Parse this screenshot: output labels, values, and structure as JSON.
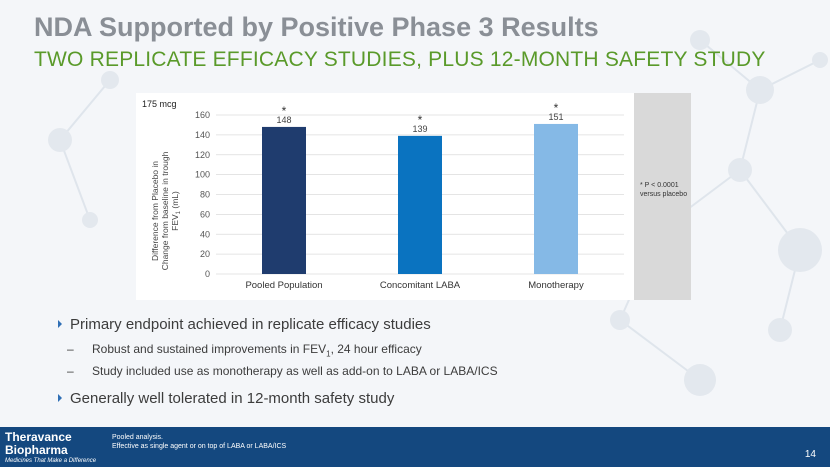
{
  "slide": {
    "title": "NDA Supported by Positive Phase 3 Results",
    "subtitle": "TWO REPLICATE EFFICACY STUDIES, PLUS 12-MONTH SAFETY STUDY",
    "page_number": "14"
  },
  "note": {
    "line1": "* P < 0.0001",
    "line2": "versus placebo"
  },
  "bullets": {
    "b1": "Primary endpoint achieved in replicate efficacy studies",
    "b1_sub1": "Robust and sustained improvements in FEV",
    "b1_sub1_subscript": "1",
    "b1_sub1_rest": ", 24 hour efficacy",
    "b1_sub2": "Study included use as monotherapy as well as add-on to LABA or LABA/ICS",
    "b2": "Generally well tolerated in 12-month safety study"
  },
  "footer": {
    "logo_line1": "Theravance",
    "logo_line2": "Biopharma",
    "tagline": "Medicines That Make a Difference",
    "footnote1": "Pooled analysis.",
    "footnote2": "Effective as single agent or on top of LABA or LABA/ICS"
  },
  "colors": {
    "footer_bg": "#14487f",
    "subtitle_green": "#5a9a2a"
  },
  "chart_data": {
    "type": "bar",
    "title": "175 mcg",
    "ylabel": "Difference from Placebo in Change from baseline in trough FEV1 (mL)",
    "ylabel_line1": "Difference from Placebo in",
    "ylabel_line2": "Change from baseline in trough",
    "ylabel_line3": "FEV",
    "ylabel_line3_sub": "1",
    "ylabel_line3_rest": " (mL)",
    "categories": [
      "Pooled Population",
      "Concomitant LABA",
      "Monotherapy"
    ],
    "values": [
      148,
      139,
      151
    ],
    "value_labels": [
      "148",
      "139",
      "151"
    ],
    "significance": [
      "*",
      "*",
      "*"
    ],
    "colors": [
      "#1f3c6e",
      "#0a73c0",
      "#85b9e6"
    ],
    "yticks": [
      0,
      20,
      40,
      60,
      80,
      100,
      120,
      140,
      160
    ],
    "ylim": [
      0,
      160
    ],
    "grid": true
  }
}
